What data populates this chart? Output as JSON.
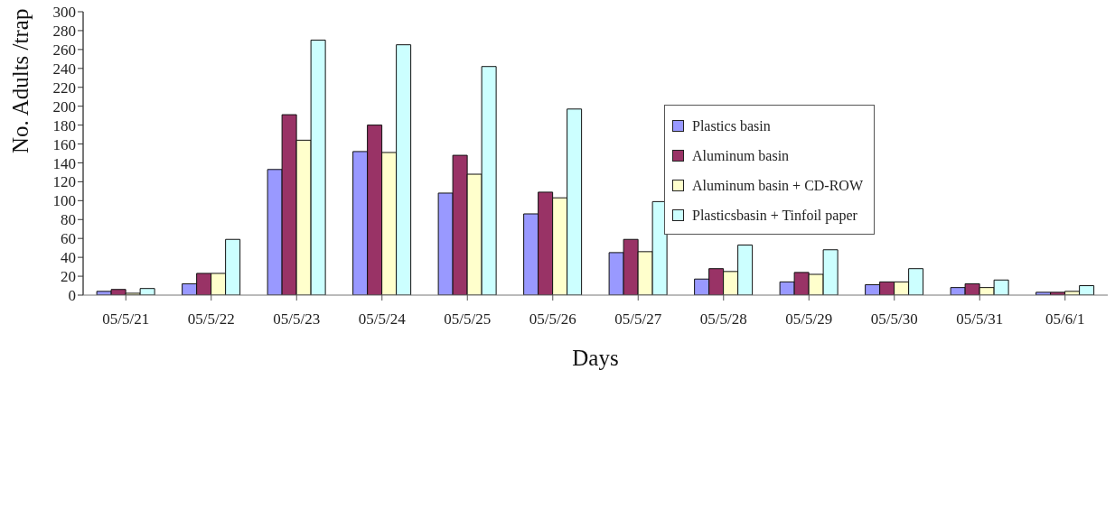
{
  "chart_data": {
    "type": "bar",
    "xlabel": "Days",
    "ylabel": "No. Adults /trap",
    "categories": [
      "05/5/21",
      "05/5/22",
      "05/5/23",
      "05/5/24",
      "05/5/25",
      "05/5/26",
      "05/5/27",
      "05/5/28",
      "05/5/29",
      "05/5/30",
      "05/5/31",
      "05/6/1"
    ],
    "series": [
      {
        "name": "Plastics basin",
        "color": "#9999ff",
        "values": [
          4,
          12,
          133,
          152,
          108,
          86,
          45,
          17,
          14,
          11,
          8,
          3
        ]
      },
      {
        "name": "Aluminum basin",
        "color": "#993366",
        "values": [
          6,
          23,
          191,
          180,
          148,
          109,
          59,
          28,
          24,
          14,
          12,
          3
        ]
      },
      {
        "name": "Aluminum basin + CD-ROW",
        "color": "#ffffcc",
        "values": [
          2,
          23,
          164,
          151,
          128,
          103,
          46,
          25,
          22,
          14,
          8,
          4
        ]
      },
      {
        "name": "Plasticsbasin + Tinfoil paper",
        "color": "#ccffff",
        "values": [
          7,
          59,
          270,
          265,
          242,
          197,
          99,
          53,
          48,
          28,
          16,
          10
        ]
      }
    ],
    "ylim": [
      0,
      300
    ],
    "yticks": [
      0,
      20,
      40,
      60,
      80,
      100,
      120,
      140,
      160,
      180,
      200,
      220,
      240,
      260,
      280,
      300
    ],
    "legend": "right"
  }
}
